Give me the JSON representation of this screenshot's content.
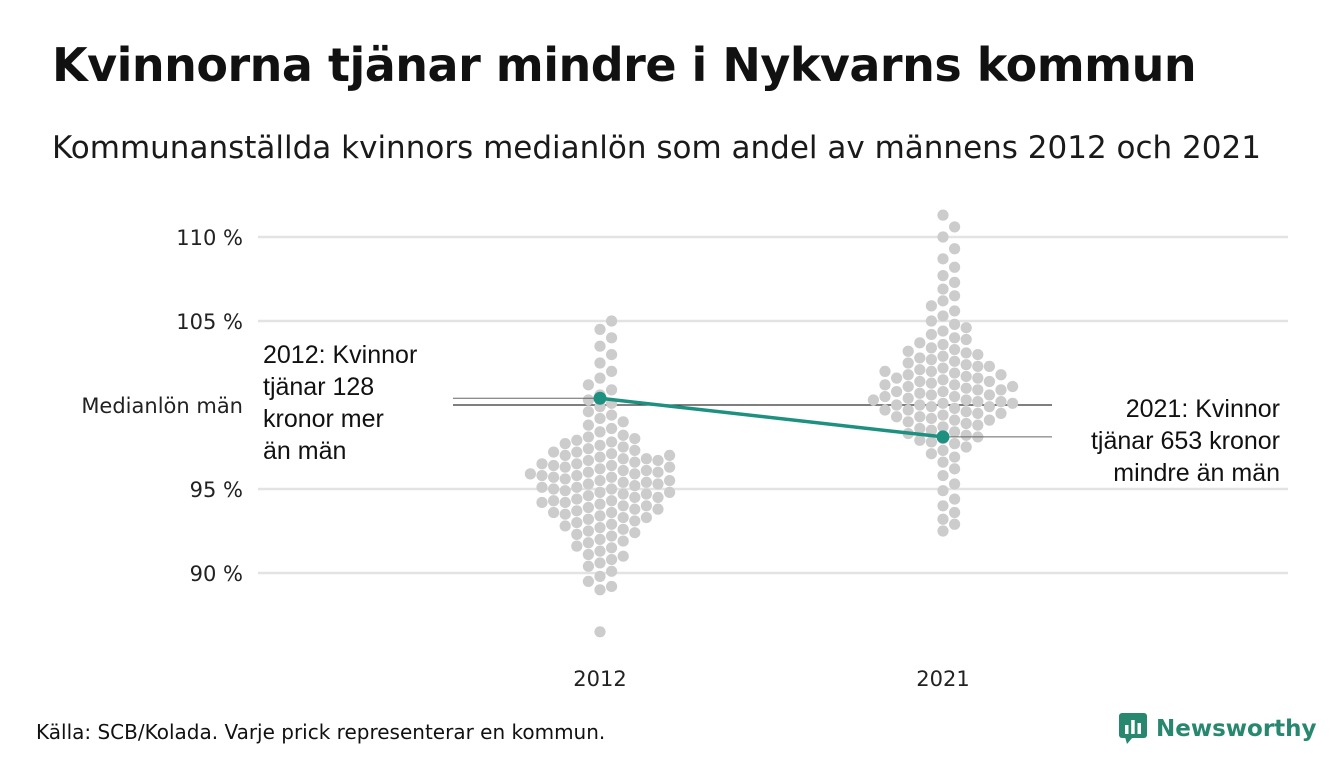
{
  "title": "Kvinnorna tjänar mindre i Nykvarns kommun",
  "subtitle": "Kommunanställda kvinnors medianlön som andel av männens 2012 och 2021",
  "footer": "Källa: SCB/Kolada. Varje prick representerar en kommun.",
  "brand": {
    "name": "Newsworthy",
    "icon": "newsworthy-logo-icon",
    "color": "#27876f"
  },
  "colors": {
    "dots": "#cccccc",
    "highlight": "#1e9080",
    "grid": "#e3e3e3",
    "reference": "#333333"
  },
  "chart_data": {
    "type": "scatter",
    "title": "Kvinnorna tjänar mindre i Nykvarns kommun",
    "subtitle": "Kommunanställda kvinnors medianlön som andel av männens 2012 och 2021",
    "categories": [
      "2012",
      "2021"
    ],
    "y_ticks": [
      {
        "value": 90,
        "label": "90 %"
      },
      {
        "value": 95,
        "label": "95 %"
      },
      {
        "value": 105,
        "label": "105 %"
      },
      {
        "value": 110,
        "label": "110 %"
      }
    ],
    "reference_line": {
      "value": 100,
      "label": "Medianlön män"
    },
    "ylim": [
      86,
      111.5
    ],
    "grid": true,
    "distributions": [
      {
        "category": "2012",
        "values": [
          86.5,
          89.0,
          89.2,
          89.5,
          89.8,
          90.1,
          90.4,
          90.6,
          90.8,
          91.0,
          91.1,
          91.3,
          91.5,
          91.6,
          91.8,
          91.9,
          92.0,
          92.2,
          92.3,
          92.4,
          92.5,
          92.6,
          92.7,
          92.8,
          92.9,
          93.0,
          93.1,
          93.2,
          93.3,
          93.3,
          93.4,
          93.5,
          93.6,
          93.6,
          93.7,
          93.8,
          93.8,
          93.9,
          94.0,
          94.0,
          94.1,
          94.2,
          94.2,
          94.3,
          94.3,
          94.4,
          94.5,
          94.5,
          94.6,
          94.7,
          94.7,
          94.8,
          94.8,
          94.9,
          95.0,
          95.0,
          95.1,
          95.1,
          95.2,
          95.3,
          95.3,
          95.4,
          95.4,
          95.5,
          95.5,
          95.6,
          95.7,
          95.7,
          95.8,
          95.8,
          95.9,
          95.9,
          96.0,
          96.0,
          96.1,
          96.1,
          96.2,
          96.3,
          96.3,
          96.4,
          96.4,
          96.5,
          96.5,
          96.6,
          96.7,
          96.7,
          96.8,
          96.8,
          96.9,
          97.0,
          97.0,
          97.1,
          97.2,
          97.2,
          97.3,
          97.4,
          97.5,
          97.6,
          97.7,
          97.8,
          97.9,
          98.0,
          98.1,
          98.2,
          98.4,
          98.6,
          98.8,
          99.0,
          99.2,
          99.4,
          99.6,
          99.9,
          100.1,
          100.3,
          100.6,
          100.9,
          101.2,
          101.6,
          102.0,
          102.5,
          103.0,
          103.5,
          104.0,
          104.5,
          105.0
        ]
      },
      {
        "category": "2021",
        "values": [
          92.5,
          92.9,
          93.2,
          93.6,
          94.0,
          94.4,
          94.9,
          95.3,
          95.8,
          96.2,
          96.6,
          96.9,
          97.1,
          97.3,
          97.5,
          97.7,
          97.8,
          97.9,
          98.0,
          98.1,
          98.2,
          98.3,
          98.4,
          98.5,
          98.6,
          98.7,
          98.8,
          98.9,
          99.0,
          99.1,
          99.1,
          99.2,
          99.3,
          99.3,
          99.4,
          99.5,
          99.5,
          99.6,
          99.7,
          99.7,
          99.8,
          99.9,
          99.9,
          100.0,
          100.0,
          100.1,
          100.1,
          100.2,
          100.2,
          100.3,
          100.3,
          100.4,
          100.5,
          100.5,
          100.6,
          100.6,
          100.7,
          100.8,
          100.8,
          100.9,
          100.9,
          101.0,
          101.1,
          101.1,
          101.2,
          101.2,
          101.3,
          101.4,
          101.4,
          101.5,
          101.6,
          101.6,
          101.7,
          101.8,
          101.8,
          101.9,
          102.0,
          102.0,
          102.1,
          102.2,
          102.3,
          102.3,
          102.4,
          102.5,
          102.6,
          102.7,
          102.8,
          102.9,
          103.0,
          103.1,
          103.2,
          103.3,
          103.4,
          103.6,
          103.7,
          103.9,
          104.0,
          104.2,
          104.4,
          104.6,
          104.8,
          105.0,
          105.3,
          105.6,
          105.9,
          106.2,
          106.5,
          106.9,
          107.3,
          107.7,
          108.2,
          108.7,
          109.3,
          110.0,
          110.6,
          111.3
        ]
      }
    ],
    "highlight": {
      "name": "Nykvarns kommun",
      "points": [
        {
          "category": "2012",
          "value": 100.4
        },
        {
          "category": "2021",
          "value": 98.1
        }
      ]
    },
    "annotations": [
      {
        "category": "2012",
        "lines": [
          "2012: Kvinnor",
          "tjänar 128",
          "kronor mer",
          "än män"
        ]
      },
      {
        "category": "2021",
        "lines": [
          "2021: Kvinnor",
          "tjänar 653 kronor",
          "mindre än män"
        ]
      }
    ]
  }
}
